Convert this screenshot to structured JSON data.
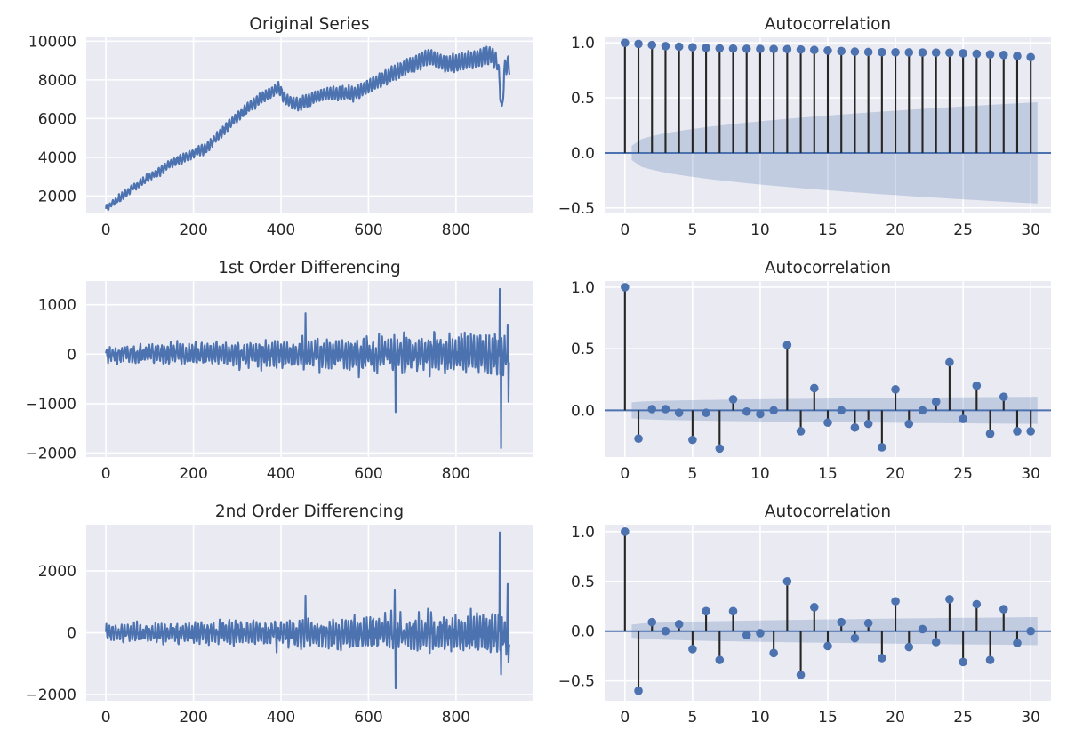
{
  "colors": {
    "line": "#4c72b0",
    "stem": "#262626",
    "panel_bg": "#eaeaf2",
    "conf_band": "#4c72b0"
  },
  "chart_data": [
    {
      "id": "orig",
      "type": "line",
      "title": "Original Series",
      "xlim": [
        -45,
        975
      ],
      "ylim": [
        1100,
        10200
      ],
      "xticks": [
        0,
        200,
        400,
        600,
        800
      ],
      "yticks": [
        2000,
        4000,
        6000,
        8000,
        10000
      ],
      "ytick_labels": [
        "2000",
        "4000",
        "6000",
        "8000",
        "10000"
      ],
      "series": {
        "n": 923,
        "anchors": [
          [
            0,
            1350
          ],
          [
            60,
            2400
          ],
          [
            150,
            3700
          ],
          [
            230,
            4500
          ],
          [
            300,
            6100
          ],
          [
            350,
            7000
          ],
          [
            395,
            7600
          ],
          [
            410,
            7000
          ],
          [
            440,
            6700
          ],
          [
            500,
            7300
          ],
          [
            570,
            7300
          ],
          [
            620,
            7900
          ],
          [
            680,
            8600
          ],
          [
            740,
            9200
          ],
          [
            780,
            8800
          ],
          [
            830,
            9000
          ],
          [
            880,
            9300
          ],
          [
            895,
            8900
          ],
          [
            900,
            7800
          ],
          [
            905,
            6200
          ],
          [
            910,
            8400
          ],
          [
            915,
            8800
          ],
          [
            922,
            8800
          ]
        ],
        "seasonal_period": 7,
        "seasonal_amp_start": 150,
        "seasonal_amp_end": 450
      }
    },
    {
      "id": "acf0",
      "type": "stem",
      "title": "Autocorrelation",
      "xlim": [
        -1.5,
        31.5
      ],
      "ylim": [
        -0.55,
        1.05
      ],
      "xticks": [
        0,
        5,
        10,
        15,
        20,
        25,
        30
      ],
      "yticks": [
        -0.5,
        0,
        0.5,
        1.0
      ],
      "ytick_labels": [
        "−0.5",
        "0.0",
        "0.5",
        "1.0"
      ],
      "lags": [
        0,
        1,
        2,
        3,
        4,
        5,
        6,
        7,
        8,
        9,
        10,
        11,
        12,
        13,
        14,
        15,
        16,
        17,
        18,
        19,
        20,
        21,
        22,
        23,
        24,
        25,
        26,
        27,
        28,
        29,
        30
      ],
      "values": [
        1.0,
        0.99,
        0.98,
        0.97,
        0.965,
        0.96,
        0.955,
        0.95,
        0.948,
        0.946,
        0.945,
        0.944,
        0.943,
        0.94,
        0.935,
        0.93,
        0.925,
        0.92,
        0.917,
        0.915,
        0.914,
        0.913,
        0.912,
        0.911,
        0.91,
        0.905,
        0.9,
        0.895,
        0.89,
        0.88,
        0.87
      ],
      "conf_band": {
        "start": 0.065,
        "end": 0.46
      }
    },
    {
      "id": "diff1",
      "type": "line",
      "title": "1st Order Differencing",
      "xlim": [
        -45,
        975
      ],
      "ylim": [
        -2080,
        1480
      ],
      "xticks": [
        0,
        200,
        400,
        600,
        800
      ],
      "yticks": [
        -2000,
        -1000,
        0,
        1000
      ],
      "ytick_labels": [
        "−2000",
        "−1000",
        "0",
        "1000"
      ],
      "series": {
        "n": 923,
        "amp_start": 120,
        "amp_end": 330,
        "spikes": [
          [
            456,
            830
          ],
          [
            662,
            -1170
          ],
          [
            900,
            1320
          ],
          [
            903,
            -1900
          ],
          [
            918,
            600
          ],
          [
            920,
            -960
          ]
        ]
      }
    },
    {
      "id": "acf1",
      "type": "stem",
      "title": "Autocorrelation",
      "xlim": [
        -1.5,
        31.5
      ],
      "ylim": [
        -0.38,
        1.05
      ],
      "xticks": [
        0,
        5,
        10,
        15,
        20,
        25,
        30
      ],
      "yticks": [
        0,
        0.5,
        1.0
      ],
      "ytick_labels": [
        "0.0",
        "0.5",
        "1.0"
      ],
      "lags": [
        0,
        1,
        2,
        3,
        4,
        5,
        6,
        7,
        8,
        9,
        10,
        11,
        12,
        13,
        14,
        15,
        16,
        17,
        18,
        19,
        20,
        21,
        22,
        23,
        24,
        25,
        26,
        27,
        28,
        29,
        30
      ],
      "values": [
        1.0,
        -0.23,
        0.01,
        0.01,
        -0.02,
        -0.24,
        -0.02,
        -0.31,
        0.09,
        -0.01,
        -0.03,
        0.0,
        0.53,
        -0.17,
        0.18,
        -0.1,
        0.0,
        -0.14,
        -0.11,
        -0.3,
        0.17,
        -0.11,
        0.0,
        0.07,
        0.39,
        -0.07,
        0.2,
        -0.19,
        0.11,
        -0.17,
        -0.17
      ],
      "conf_band": {
        "start": 0.065,
        "end": 0.11
      }
    },
    {
      "id": "diff2",
      "type": "line",
      "title": "2nd Order Differencing",
      "xlim": [
        -45,
        975
      ],
      "ylim": [
        -2200,
        3500
      ],
      "xticks": [
        0,
        200,
        400,
        600,
        800
      ],
      "yticks": [
        -2000,
        0,
        2000
      ],
      "ytick_labels": [
        "−2000",
        "0",
        "2000"
      ],
      "series": {
        "n": 923,
        "amp_start": 180,
        "amp_end": 520,
        "spikes": [
          [
            456,
            1200
          ],
          [
            660,
            1400
          ],
          [
            662,
            -1800
          ],
          [
            900,
            3250
          ],
          [
            903,
            -1350
          ],
          [
            918,
            1580
          ],
          [
            920,
            -950
          ]
        ]
      }
    },
    {
      "id": "acf2",
      "type": "stem",
      "title": "Autocorrelation",
      "xlim": [
        -1.5,
        31.5
      ],
      "ylim": [
        -0.7,
        1.07
      ],
      "xticks": [
        0,
        5,
        10,
        15,
        20,
        25,
        30
      ],
      "yticks": [
        -0.5,
        0,
        0.5,
        1.0
      ],
      "ytick_labels": [
        "−0.5",
        "0.0",
        "0.5",
        "1.0"
      ],
      "lags": [
        0,
        1,
        2,
        3,
        4,
        5,
        6,
        7,
        8,
        9,
        10,
        11,
        12,
        13,
        14,
        15,
        16,
        17,
        18,
        19,
        20,
        21,
        22,
        23,
        24,
        25,
        26,
        27,
        28,
        29,
        30
      ],
      "values": [
        1.0,
        -0.6,
        0.09,
        0.0,
        0.07,
        -0.18,
        0.2,
        -0.29,
        0.2,
        -0.04,
        -0.02,
        -0.22,
        0.5,
        -0.44,
        0.24,
        -0.15,
        0.09,
        -0.07,
        0.08,
        -0.27,
        0.3,
        -0.16,
        0.02,
        -0.11,
        0.32,
        -0.31,
        0.27,
        -0.29,
        0.22,
        -0.12,
        0.0
      ],
      "conf_band": {
        "start": 0.065,
        "end": 0.14
      }
    }
  ]
}
